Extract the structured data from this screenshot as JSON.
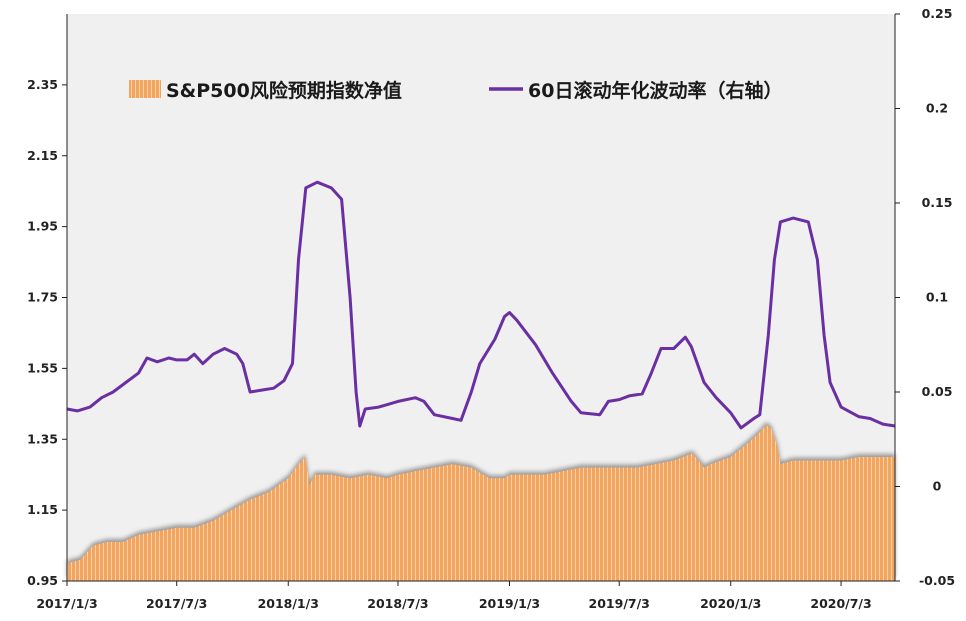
{
  "chart_data": {
    "type": "area",
    "colors": {
      "area": "#f2a55e",
      "area_stripe": "#fbd2aa",
      "area_shadow": "#9a9a9a",
      "line": "#6a2fa3",
      "plot_bg": "#f0f0f0"
    },
    "grid": false,
    "legend_position": "top",
    "x_ticks": [
      "2017/1/3",
      "2017/7/3",
      "2018/1/3",
      "2018/7/3",
      "2019/1/3",
      "2019/7/3",
      "2020/1/3",
      "2020/7/3"
    ],
    "x_tick_dates": [
      "2017-01-03",
      "2017-07-03",
      "2018-01-03",
      "2018-07-03",
      "2019-01-03",
      "2019-07-03",
      "2020-01-03",
      "2020-07-03"
    ],
    "x_range": [
      "2017-01-03",
      "2020-09-30"
    ],
    "y_left": {
      "range": [
        0.95,
        2.55
      ],
      "ticks": [
        "0.95",
        "1.15",
        "1.35",
        "1.55",
        "1.75",
        "1.95",
        "2.15",
        "2.35"
      ]
    },
    "y_right": {
      "range": [
        -0.05,
        0.25
      ],
      "ticks": [
        "-0.05",
        "0",
        "0.05",
        "0.1",
        "0.15",
        "0.2",
        "0.25"
      ]
    },
    "series": [
      {
        "name": "S&P500风险预期指数净值",
        "kind": "area",
        "axis": "left",
        "points": [
          [
            "2017-01-03",
            1.0
          ],
          [
            "2017-01-25",
            1.01
          ],
          [
            "2017-02-15",
            1.05
          ],
          [
            "2017-03-10",
            1.06
          ],
          [
            "2017-04-05",
            1.06
          ],
          [
            "2017-05-01",
            1.08
          ],
          [
            "2017-06-01",
            1.09
          ],
          [
            "2017-07-03",
            1.1
          ],
          [
            "2017-08-01",
            1.1
          ],
          [
            "2017-09-01",
            1.12
          ],
          [
            "2017-10-01",
            1.15
          ],
          [
            "2017-11-01",
            1.18
          ],
          [
            "2017-12-01",
            1.2
          ],
          [
            "2018-01-03",
            1.24
          ],
          [
            "2018-01-20",
            1.28
          ],
          [
            "2018-01-31",
            1.3
          ],
          [
            "2018-02-07",
            1.22
          ],
          [
            "2018-02-15",
            1.25
          ],
          [
            "2018-03-15",
            1.25
          ],
          [
            "2018-04-15",
            1.24
          ],
          [
            "2018-05-15",
            1.25
          ],
          [
            "2018-06-15",
            1.24
          ],
          [
            "2018-07-03",
            1.25
          ],
          [
            "2018-08-01",
            1.26
          ],
          [
            "2018-09-01",
            1.27
          ],
          [
            "2018-10-01",
            1.28
          ],
          [
            "2018-11-01",
            1.27
          ],
          [
            "2018-12-01",
            1.24
          ],
          [
            "2018-12-26",
            1.24
          ],
          [
            "2019-01-03",
            1.25
          ],
          [
            "2019-02-01",
            1.25
          ],
          [
            "2019-03-01",
            1.25
          ],
          [
            "2019-04-01",
            1.26
          ],
          [
            "2019-05-01",
            1.27
          ],
          [
            "2019-06-01",
            1.27
          ],
          [
            "2019-07-03",
            1.27
          ],
          [
            "2019-08-01",
            1.27
          ],
          [
            "2019-09-01",
            1.28
          ],
          [
            "2019-10-01",
            1.29
          ],
          [
            "2019-11-01",
            1.31
          ],
          [
            "2019-11-20",
            1.27
          ],
          [
            "2019-12-01",
            1.28
          ],
          [
            "2020-01-03",
            1.3
          ],
          [
            "2020-02-01",
            1.34
          ],
          [
            "2020-02-20",
            1.37
          ],
          [
            "2020-03-01",
            1.39
          ],
          [
            "2020-03-10",
            1.38
          ],
          [
            "2020-03-20",
            1.33
          ],
          [
            "2020-03-25",
            1.28
          ],
          [
            "2020-04-15",
            1.29
          ],
          [
            "2020-05-15",
            1.29
          ],
          [
            "2020-06-15",
            1.29
          ],
          [
            "2020-07-03",
            1.29
          ],
          [
            "2020-08-01",
            1.3
          ],
          [
            "2020-09-01",
            1.3
          ],
          [
            "2020-09-30",
            1.3
          ]
        ]
      },
      {
        "name": "60日滚动年化波动率（右轴）",
        "kind": "line",
        "axis": "right",
        "points": [
          [
            "2017-01-03",
            0.041
          ],
          [
            "2017-01-20",
            0.04
          ],
          [
            "2017-02-10",
            0.042
          ],
          [
            "2017-03-01",
            0.047
          ],
          [
            "2017-03-20",
            0.05
          ],
          [
            "2017-04-10",
            0.055
          ],
          [
            "2017-05-01",
            0.06
          ],
          [
            "2017-05-15",
            0.068
          ],
          [
            "2017-06-01",
            0.066
          ],
          [
            "2017-06-20",
            0.068
          ],
          [
            "2017-07-03",
            0.067
          ],
          [
            "2017-07-20",
            0.067
          ],
          [
            "2017-08-01",
            0.07
          ],
          [
            "2017-08-15",
            0.065
          ],
          [
            "2017-09-01",
            0.07
          ],
          [
            "2017-09-20",
            0.073
          ],
          [
            "2017-10-10",
            0.07
          ],
          [
            "2017-10-20",
            0.065
          ],
          [
            "2017-11-01",
            0.05
          ],
          [
            "2017-11-20",
            0.051
          ],
          [
            "2017-12-10",
            0.052
          ],
          [
            "2017-12-27",
            0.056
          ],
          [
            "2018-01-10",
            0.065
          ],
          [
            "2018-01-20",
            0.12
          ],
          [
            "2018-02-01",
            0.158
          ],
          [
            "2018-02-20",
            0.161
          ],
          [
            "2018-03-15",
            0.158
          ],
          [
            "2018-04-01",
            0.152
          ],
          [
            "2018-04-15",
            0.1
          ],
          [
            "2018-04-25",
            0.05
          ],
          [
            "2018-05-01",
            0.032
          ],
          [
            "2018-05-10",
            0.041
          ],
          [
            "2018-06-01",
            0.042
          ],
          [
            "2018-07-03",
            0.045
          ],
          [
            "2018-08-01",
            0.047
          ],
          [
            "2018-08-15",
            0.045
          ],
          [
            "2018-09-01",
            0.038
          ],
          [
            "2018-10-01",
            0.036
          ],
          [
            "2018-10-15",
            0.035
          ],
          [
            "2018-11-01",
            0.05
          ],
          [
            "2018-11-15",
            0.065
          ],
          [
            "2018-12-10",
            0.078
          ],
          [
            "2018-12-26",
            0.09
          ],
          [
            "2019-01-03",
            0.092
          ],
          [
            "2019-01-15",
            0.088
          ],
          [
            "2019-02-15",
            0.075
          ],
          [
            "2019-03-15",
            0.06
          ],
          [
            "2019-04-15",
            0.045
          ],
          [
            "2019-05-01",
            0.039
          ],
          [
            "2019-06-01",
            0.038
          ],
          [
            "2019-06-15",
            0.045
          ],
          [
            "2019-07-03",
            0.046
          ],
          [
            "2019-07-20",
            0.048
          ],
          [
            "2019-08-10",
            0.049
          ],
          [
            "2019-08-25",
            0.06
          ],
          [
            "2019-09-10",
            0.073
          ],
          [
            "2019-10-01",
            0.073
          ],
          [
            "2019-10-20",
            0.079
          ],
          [
            "2019-10-30",
            0.074
          ],
          [
            "2019-11-20",
            0.055
          ],
          [
            "2019-12-10",
            0.047
          ],
          [
            "2020-01-03",
            0.039
          ],
          [
            "2020-01-20",
            0.031
          ],
          [
            "2020-02-10",
            0.036
          ],
          [
            "2020-02-20",
            0.038
          ],
          [
            "2020-03-05",
            0.08
          ],
          [
            "2020-03-15",
            0.12
          ],
          [
            "2020-03-25",
            0.14
          ],
          [
            "2020-04-15",
            0.142
          ],
          [
            "2020-05-10",
            0.14
          ],
          [
            "2020-05-25",
            0.12
          ],
          [
            "2020-06-05",
            0.08
          ],
          [
            "2020-06-15",
            0.055
          ],
          [
            "2020-07-03",
            0.042
          ],
          [
            "2020-08-01",
            0.037
          ],
          [
            "2020-08-20",
            0.036
          ],
          [
            "2020-09-10",
            0.033
          ],
          [
            "2020-09-30",
            0.032
          ]
        ]
      }
    ]
  }
}
